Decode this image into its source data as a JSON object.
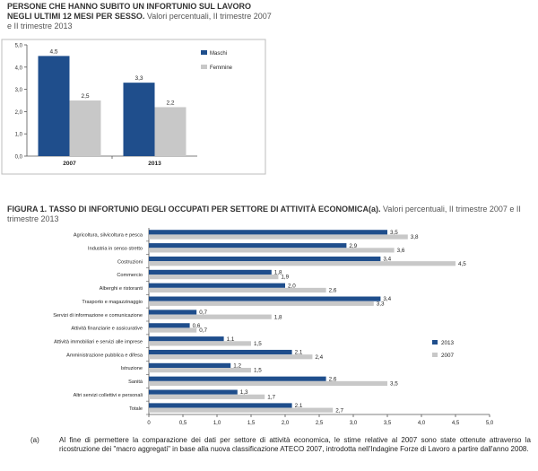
{
  "chart1_title": {
    "bold": "PERSONE CHE HANNO SUBITO UN INFORTUNIO SUL LAVORO NEGLI ULTIMI 12 MESI PER SESSO.",
    "rest": " Valori percentuali, II trimestre 2007 e II trimestre 2013"
  },
  "chart2_title": {
    "bold": "FIGURA 1. TASSO DI INFORTUNIO DEGLI OCCUPATI PER SETTORE DI ATTIVITÀ ECONOMICA(a).",
    "rest": " Valori percentuali, II trimestre 2007 e II trimestre 2013"
  },
  "footnote": {
    "mark": "(a)",
    "text": "Al fine di permettere la comparazione dei dati per settore di attività economica, le stime relative al 2007 sono state ottenute attraverso la ricostruzione dei \"macro aggregati\" in base alla nuova classificazione ATECO 2007, introdotta nell'Indagine Forze di Lavoro a partire dall'anno 2008."
  },
  "colors": {
    "dark": "#1f4e8c",
    "light": "#c8c8c8"
  },
  "chart_data": [
    {
      "type": "bar",
      "title": "PERSONE CHE HANNO SUBITO UN INFORTUNIO SUL LAVORO NEGLI ULTIMI 12 MESI PER SESSO. Valori percentuali, II trimestre 2007 e II trimestre 2013",
      "categories": [
        "2007",
        "2013"
      ],
      "series": [
        {
          "name": "Maschi",
          "values": [
            4.5,
            3.3
          ],
          "labels": [
            "4,5",
            "3,3"
          ]
        },
        {
          "name": "Femmine",
          "values": [
            2.5,
            2.2
          ],
          "labels": [
            "2,5",
            "2,2"
          ]
        }
      ],
      "ylim": [
        0,
        5
      ],
      "yticks": [
        "0,0",
        "1,0",
        "2,0",
        "3,0",
        "4,0",
        "5,0"
      ],
      "legend": "right"
    },
    {
      "type": "bar",
      "orientation": "horizontal",
      "title": "FIGURA 1. TASSO DI INFORTUNIO DEGLI OCCUPATI PER SETTORE DI ATTIVITÀ ECONOMICA(a). Valori percentuali, II trimestre 2007 e II trimestre 2013",
      "categories": [
        "Agricoltura, silvicoltura e pesca",
        "Industria in senso stretto",
        "Costruzioni",
        "Commercio",
        "Alberghi e ristoranti",
        "Trasporto e magazzinaggio",
        "Servizi di informazione e comunicazione",
        "Attività finanziarie e assicurative",
        "Attività immobiliari e servizi alle imprese",
        "Amministrazione pubblica e difesa",
        "Istruzione",
        "Sanità",
        "Altri servizi collettivi e personali",
        "Totale"
      ],
      "series": [
        {
          "name": "2013",
          "values": [
            3.5,
            2.9,
            3.4,
            1.8,
            2.0,
            3.4,
            0.7,
            0.6,
            1.1,
            2.1,
            1.2,
            2.6,
            1.3,
            2.1
          ],
          "labels": [
            "3,5",
            "2,9",
            "3,4",
            "1,8",
            "2,0",
            "3,4",
            "0,7",
            "0,6",
            "1,1",
            "2,1",
            "1,2",
            "2,6",
            "1,3",
            "2,1"
          ]
        },
        {
          "name": "2007",
          "values": [
            3.8,
            3.6,
            4.5,
            1.9,
            2.6,
            3.3,
            1.8,
            0.7,
            1.5,
            2.4,
            1.5,
            3.5,
            1.7,
            2.7
          ],
          "labels": [
            "3,8",
            "3,6",
            "4,5",
            "1,9",
            "2,6",
            "3,3",
            "1,8",
            "0,7",
            "1,5",
            "2,4",
            "1,5",
            "3,5",
            "1,7",
            "2,7"
          ]
        }
      ],
      "xlim": [
        0,
        5
      ],
      "xticks": [
        "0",
        "0,5",
        "1,0",
        "1,5",
        "2,0",
        "2,5",
        "3,0",
        "3,5",
        "4,0",
        "4,5",
        "5,0"
      ],
      "legend": "right"
    }
  ]
}
